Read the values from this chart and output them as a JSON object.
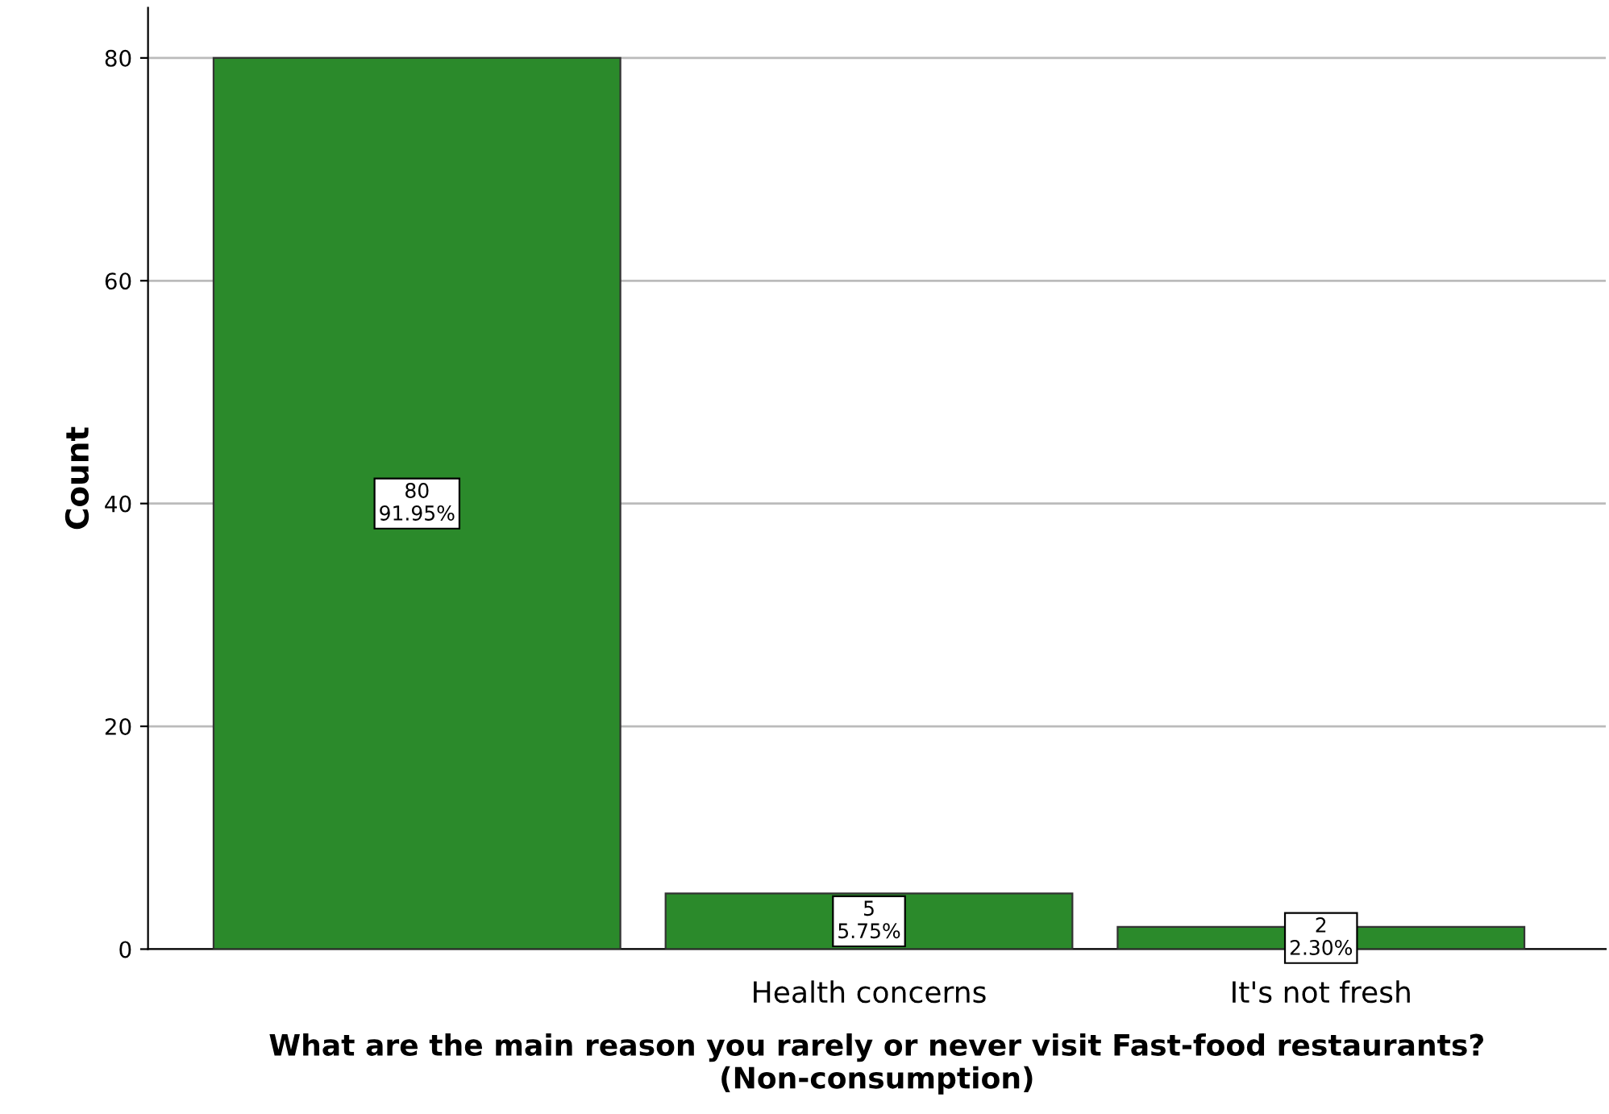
{
  "chart_data": {
    "type": "bar",
    "categories": [
      null,
      "Health concerns",
      "It's not fresh"
    ],
    "values": [
      80,
      5,
      2
    ],
    "value_labels": [
      "80\n91.95%",
      "5\n5.75%",
      "2\n2.30%"
    ],
    "color": "#2b8a2b",
    "ylabel": "Count",
    "xlabel": "What are the main reason you rarely or never visit Fast-food restaurants? (Non-consumption)",
    "ylim": [
      0,
      84.5
    ],
    "yticks": [
      0,
      20,
      40,
      60,
      80
    ],
    "grid": "y"
  }
}
